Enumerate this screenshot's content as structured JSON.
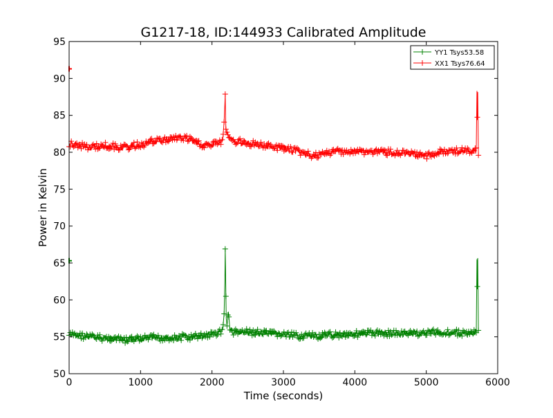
{
  "chart_data": {
    "type": "line",
    "title": "G1217-18, ID:144933 Calibrated Amplitude",
    "xlabel": "Time (seconds)",
    "ylabel": "Power in Kelvin",
    "xlim": [
      0,
      6000
    ],
    "ylim": [
      50,
      95
    ],
    "xticks": [
      "0",
      "1000",
      "2000",
      "3000",
      "4000",
      "5000",
      "6000"
    ],
    "yticks": [
      "50",
      "55",
      "60",
      "65",
      "70",
      "75",
      "80",
      "85",
      "90",
      "95"
    ],
    "grid": false,
    "legend_position": "top-right",
    "marker": "+",
    "series": [
      {
        "name": "YY1 Tsys53.58",
        "color": "#008000",
        "x": [
          0,
          100,
          200,
          300,
          400,
          500,
          600,
          700,
          800,
          900,
          1000,
          1100,
          1200,
          1300,
          1400,
          1500,
          1600,
          1700,
          1800,
          1900,
          2000,
          2100,
          2150,
          2170,
          2180,
          2185,
          2190,
          2195,
          2200,
          2210,
          2230,
          2250,
          2300,
          2400,
          2500,
          2600,
          2700,
          2800,
          2900,
          3000,
          3100,
          3200,
          3300,
          3400,
          3500,
          3600,
          3700,
          3800,
          3900,
          4000,
          4100,
          4200,
          4300,
          4400,
          4500,
          4600,
          4700,
          4800,
          4900,
          5000,
          5100,
          5200,
          5300,
          5400,
          5500,
          5600,
          5700,
          5710,
          5715,
          5720,
          5730
        ],
        "values": [
          55.2,
          55.3,
          55.1,
          55.0,
          54.9,
          54.8,
          54.8,
          54.6,
          54.5,
          54.7,
          54.7,
          54.8,
          54.9,
          54.8,
          54.9,
          54.8,
          55.0,
          54.9,
          55.1,
          55.2,
          55.3,
          55.6,
          56.0,
          58.0,
          62.5,
          67.0,
          64.0,
          60.5,
          57.5,
          56.5,
          58.5,
          56.0,
          55.6,
          55.7,
          55.6,
          55.6,
          55.5,
          55.4,
          55.4,
          55.3,
          55.2,
          55.1,
          55.2,
          55.1,
          55.0,
          55.2,
          55.3,
          55.3,
          55.4,
          55.4,
          55.4,
          55.5,
          55.5,
          55.5,
          55.5,
          55.5,
          55.4,
          55.5,
          55.5,
          55.5,
          55.6,
          55.6,
          55.6,
          55.6,
          55.5,
          55.5,
          55.5,
          65.6,
          61.8,
          65.6,
          55.8
        ]
      },
      {
        "name": "XX1 Tsys76.64",
        "color": "#ff0000",
        "x": [
          0,
          100,
          200,
          300,
          400,
          500,
          600,
          700,
          800,
          900,
          1000,
          1100,
          1200,
          1300,
          1400,
          1500,
          1600,
          1700,
          1800,
          1900,
          2000,
          2100,
          2150,
          2170,
          2180,
          2185,
          2190,
          2195,
          2200,
          2210,
          2230,
          2250,
          2300,
          2400,
          2500,
          2600,
          2700,
          2800,
          2900,
          3000,
          3100,
          3200,
          3300,
          3400,
          3500,
          3600,
          3700,
          3800,
          3900,
          4000,
          4100,
          4200,
          4300,
          4400,
          4500,
          4600,
          4700,
          4800,
          4900,
          5000,
          5100,
          5200,
          5300,
          5400,
          5500,
          5600,
          5700,
          5710,
          5715,
          5720,
          5730
        ],
        "values": [
          81.2,
          81.0,
          80.8,
          80.7,
          80.8,
          80.9,
          80.8,
          80.7,
          80.6,
          80.9,
          81.0,
          81.3,
          81.5,
          81.6,
          81.8,
          81.9,
          81.9,
          81.7,
          81.2,
          80.9,
          81.0,
          81.3,
          81.6,
          84.0,
          86.5,
          88.0,
          85.0,
          83.0,
          82.5,
          82.8,
          82.2,
          81.8,
          81.5,
          81.4,
          81.2,
          81.2,
          81.0,
          80.8,
          80.6,
          80.6,
          80.4,
          80.1,
          79.8,
          79.6,
          79.5,
          79.8,
          80.1,
          80.2,
          80.1,
          80.0,
          80.1,
          80.0,
          80.1,
          80.0,
          80.0,
          79.9,
          79.8,
          79.7,
          79.6,
          79.5,
          79.8,
          80.0,
          80.1,
          80.2,
          80.2,
          80.1,
          80.2,
          88.2,
          84.6,
          88.2,
          79.6
        ]
      }
    ],
    "isolated_points": [
      {
        "series": "YY1 Tsys53.58",
        "x": 0,
        "y": 65.3
      },
      {
        "series": "XX1 Tsys76.64",
        "x": 0,
        "y": 91.3
      }
    ]
  }
}
